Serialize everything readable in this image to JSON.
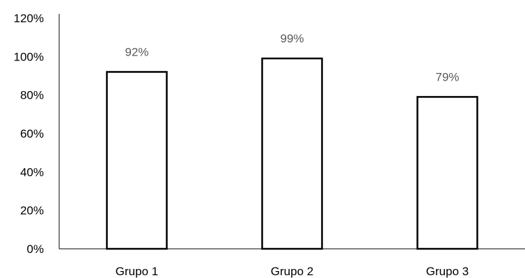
{
  "chart_data": {
    "type": "bar",
    "categories": [
      "Grupo 1",
      "Grupo 2",
      "Grupo 3"
    ],
    "values": [
      92,
      99,
      79
    ],
    "data_labels": [
      "92%",
      "99%",
      "79%"
    ],
    "title": "",
    "xlabel": "",
    "ylabel": "",
    "ylim": [
      0,
      120
    ],
    "y_ticks": [
      0,
      20,
      40,
      60,
      80,
      100,
      120
    ],
    "y_tick_labels": [
      "0%",
      "20%",
      "40%",
      "60%",
      "80%",
      "100%",
      "120%"
    ],
    "grid": false,
    "legend": "none",
    "colors": {
      "bar_fill": "#ffffff",
      "bar_stroke": "#000000",
      "data_label": "#595959",
      "axis": "#000000"
    }
  }
}
